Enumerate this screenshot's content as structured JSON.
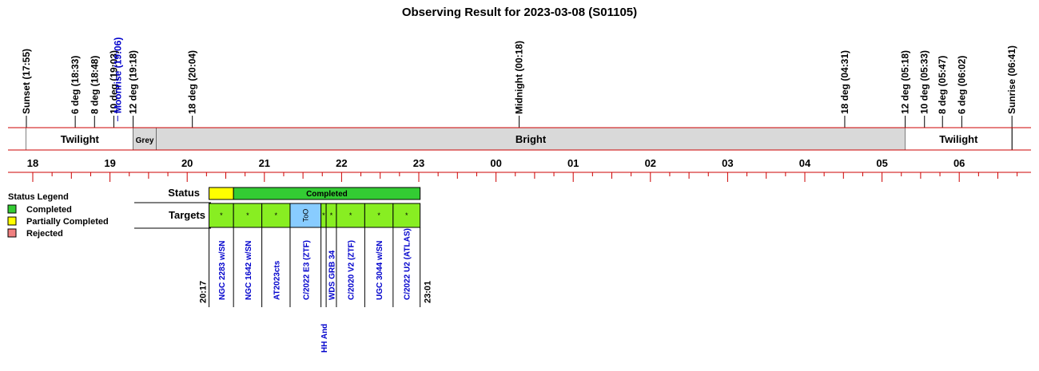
{
  "chart_data": {
    "type": "timeline",
    "title": "Observing Result for 2023-03-08 (S01105)",
    "axis": {
      "hour_labels": [
        "18",
        "19",
        "20",
        "21",
        "22",
        "23",
        "00",
        "01",
        "02",
        "03",
        "04",
        "05",
        "06"
      ],
      "range_hours": [
        17.75,
        30.75
      ]
    },
    "events": [
      {
        "label": "Sunset (17:55)",
        "hour": 17.917,
        "color": "#000000"
      },
      {
        "label": "6 deg (18:33)",
        "hour": 18.55,
        "color": "#000000"
      },
      {
        "label": "8 deg (18:48)",
        "hour": 18.8,
        "color": "#000000"
      },
      {
        "label": "10 deg (19:03)",
        "hour": 19.05,
        "color": "#000000"
      },
      {
        "label": "Moonrise (19:06)",
        "hour": 19.1,
        "color": "#0000cc"
      },
      {
        "label": "12 deg (19:18)",
        "hour": 19.3,
        "color": "#000000"
      },
      {
        "label": "18 deg (20:04)",
        "hour": 20.067,
        "color": "#000000"
      },
      {
        "label": "Midnight (00:18)",
        "hour": 24.3,
        "color": "#000000"
      },
      {
        "label": "18 deg (04:31)",
        "hour": 28.517,
        "color": "#000000"
      },
      {
        "label": "12 deg (05:18)",
        "hour": 29.3,
        "color": "#000000"
      },
      {
        "label": "10 deg (05:33)",
        "hour": 29.55,
        "color": "#000000"
      },
      {
        "label": "8 deg (05:47)",
        "hour": 29.783,
        "color": "#000000"
      },
      {
        "label": "6 deg (06:02)",
        "hour": 30.033,
        "color": "#000000"
      },
      {
        "label": "Sunrise (06:41)",
        "hour": 30.683,
        "color": "#000000"
      }
    ],
    "periods": [
      {
        "label": "Twilight",
        "start": 17.917,
        "end": 19.3,
        "fill": "#ffffff"
      },
      {
        "label": "Grey",
        "start": 19.3,
        "end": 19.6,
        "fill": "#d9d9d9"
      },
      {
        "label": "Bright",
        "start": 19.6,
        "end": 29.3,
        "fill": "#d9d9d9"
      },
      {
        "label": "Twilight",
        "start": 29.3,
        "end": 30.683,
        "fill": "#ffffff"
      }
    ],
    "status_row": {
      "label": "Status",
      "segments": [
        {
          "label": "",
          "start": 20.283,
          "end": 20.6,
          "fill": "#ffff00"
        },
        {
          "label": "Completed",
          "start": 20.6,
          "end": 23.017,
          "fill": "#33cc33"
        }
      ]
    },
    "targets_row": {
      "label": "Targets",
      "start_label": "20:17",
      "end_label": "23:01",
      "targets": [
        {
          "name": "NGC 2283 w/SN",
          "start": 20.283,
          "end": 20.6,
          "fill": "#88ee22",
          "mark": "*"
        },
        {
          "name": "NGC 1642 w/SN",
          "start": 20.6,
          "end": 20.967,
          "fill": "#88ee22",
          "mark": "*"
        },
        {
          "name": "AT2023cts",
          "start": 20.967,
          "end": 21.333,
          "fill": "#88ee22",
          "mark": "*"
        },
        {
          "name": "C/2022 E3 (ZTF)",
          "start": 21.333,
          "end": 21.733,
          "fill": "#88ccff",
          "mark": "ToO"
        },
        {
          "name": "HH And",
          "start": 21.733,
          "end": 21.8,
          "fill": "#88ee22",
          "mark": "*"
        },
        {
          "name": "WDS GRB 34",
          "start": 21.8,
          "end": 21.933,
          "fill": "#88ee22",
          "mark": "*"
        },
        {
          "name": "C/2020 V2 (ZTF)",
          "start": 21.933,
          "end": 22.3,
          "fill": "#88ee22",
          "mark": "*"
        },
        {
          "name": "UGC 3044 w/SN",
          "start": 22.3,
          "end": 22.667,
          "fill": "#88ee22",
          "mark": "*"
        },
        {
          "name": "C/2022 U2 (ATLAS)",
          "start": 22.667,
          "end": 23.017,
          "fill": "#88ee22",
          "mark": "*"
        }
      ]
    },
    "legend": {
      "title": "Status Legend",
      "items": [
        {
          "label": "Completed",
          "color": "#33cc33"
        },
        {
          "label": "Partially Completed",
          "color": "#ffff00"
        },
        {
          "label": "Rejected",
          "color": "#f08080"
        }
      ]
    },
    "colors": {
      "axis_line": "#cc0000",
      "border": "#000000"
    }
  }
}
